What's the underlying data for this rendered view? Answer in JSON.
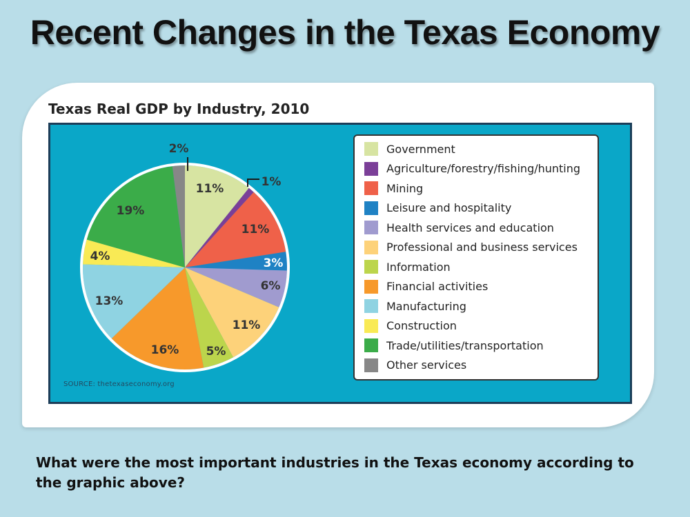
{
  "slide": {
    "title": "Recent Changes in the Texas Economy",
    "question": "What were the most important industries in the Texas economy according to the graphic above?"
  },
  "chart_data": {
    "type": "pie",
    "title": "Texas Real GDP by Industry, 2010",
    "source": "SOURCE: thetexaseconomy.org",
    "slices": [
      {
        "category": "Government",
        "value": 11,
        "label": "11%",
        "color": "#d7e4a2"
      },
      {
        "category": "Agriculture/forestry/fishing/hunting",
        "value": 1,
        "label": "1%",
        "color": "#7b3f98"
      },
      {
        "category": "Mining",
        "value": 11,
        "label": "11%",
        "color": "#ef6149"
      },
      {
        "category": "Leisure and hospitality",
        "value": 3,
        "label": "3%",
        "color": "#1f82c4"
      },
      {
        "category": "Health services and education",
        "value": 6,
        "label": "6%",
        "color": "#a09bcf"
      },
      {
        "category": "Professional and business services",
        "value": 11,
        "label": "11%",
        "color": "#fdd27a"
      },
      {
        "category": "Information",
        "value": 5,
        "label": "5%",
        "color": "#bcd54c"
      },
      {
        "category": "Financial activities",
        "value": 16,
        "label": "16%",
        "color": "#f7992b"
      },
      {
        "category": "Manufacturing",
        "value": 13,
        "label": "13%",
        "color": "#8fd3e2"
      },
      {
        "category": "Construction",
        "value": 4,
        "label": "4%",
        "color": "#f9ea55"
      },
      {
        "category": "Trade/utilities/transportation",
        "value": 19,
        "label": "19%",
        "color": "#3bac49"
      },
      {
        "category": "Other services",
        "value": 2,
        "label": "2%",
        "color": "#878787"
      }
    ]
  }
}
